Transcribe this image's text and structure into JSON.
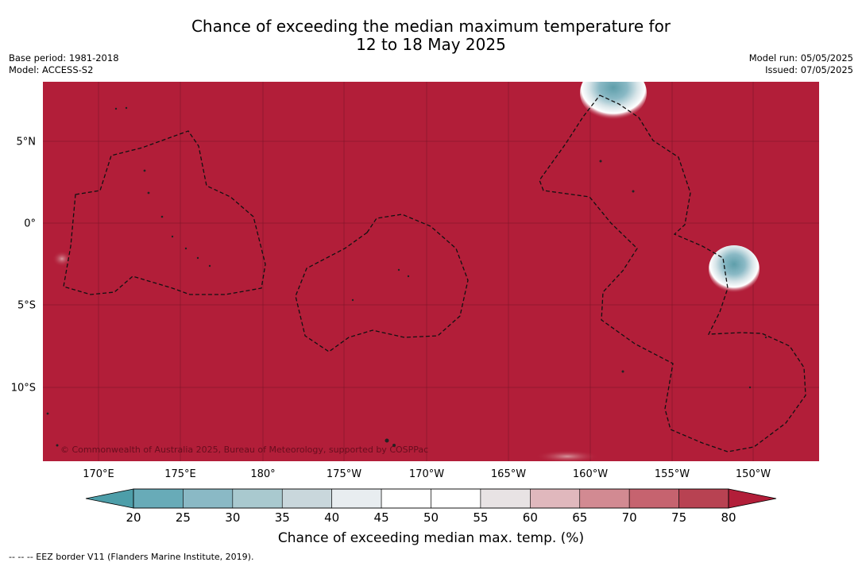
{
  "title": {
    "line1": "Chance of exceeding the median maximum temperature for",
    "line2": "12 to 18 May 2025"
  },
  "meta_left": {
    "base_period": "Base period: 1981-2018",
    "model": "Model: ACCESS-S2"
  },
  "meta_right": {
    "model_run": "Model run: 05/05/2025",
    "issued": "Issued: 07/05/2025"
  },
  "map": {
    "lon_ticks": [
      "170°E",
      "175°E",
      "180°",
      "175°W",
      "170°W",
      "165°W",
      "160°W",
      "155°W",
      "150°W"
    ],
    "lat_ticks": [
      "5°N",
      "0°",
      "5°S",
      "10°S"
    ],
    "copyright": "© Commonwealth of Australia 2025, Bureau of Meteorology, supported by COSPPac",
    "background_color": "#b21e39"
  },
  "colorbar": {
    "ticks": [
      "20",
      "25",
      "30",
      "35",
      "40",
      "45",
      "50",
      "55",
      "60",
      "65",
      "70",
      "75",
      "80"
    ],
    "colors": [
      "#4d9ea9",
      "#68abb8",
      "#8ab9c5",
      "#a9c9cf",
      "#c9d7dc",
      "#e8edf0",
      "#ffffff",
      "#ffffff",
      "#e8e3e4",
      "#e0b8bd",
      "#d28a92",
      "#c6636f",
      "#b84252",
      "#b21e39"
    ],
    "label": "Chance of exceeding median max. temp. (%)"
  },
  "footnote": "-- -- -- EEZ border V11 (Flanders Marine Institute, 2019)."
}
